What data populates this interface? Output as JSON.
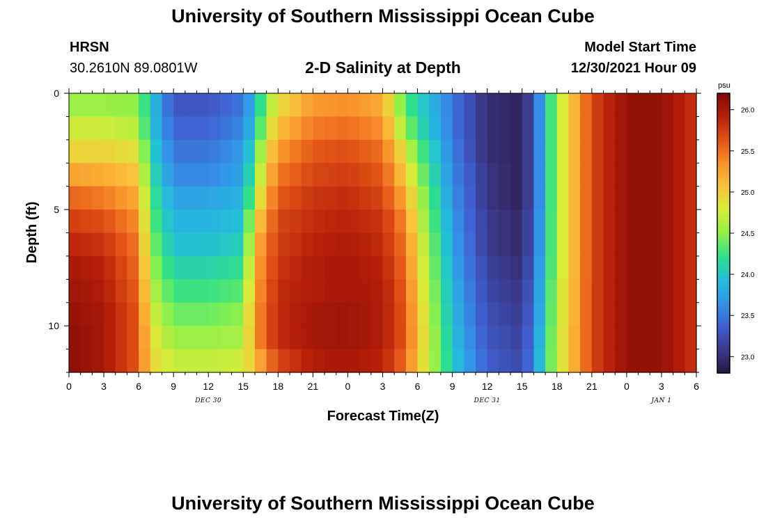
{
  "title": "University of Southern Mississippi Ocean Cube",
  "title_repeat": "University of Southern Mississippi Ocean Cube",
  "station": {
    "name": "HRSN",
    "coords": "30.2610N  89.0801W"
  },
  "plot_title": "2-D Salinity at Depth",
  "model": {
    "label": "Model Start Time",
    "value": "12/30/2021 Hour 09"
  },
  "chart_data": {
    "type": "heatmap",
    "xlabel": "Forecast Time(Z)",
    "ylabel": "Depth (ft)",
    "x_tick_labels": [
      "0",
      "3",
      "6",
      "9",
      "12",
      "15",
      "18",
      "21",
      "0",
      "3",
      "6",
      "9",
      "12",
      "15",
      "18",
      "21",
      "0",
      "3",
      "6"
    ],
    "x_range_hours": [
      0,
      54
    ],
    "date_labels": [
      {
        "text": "DEC 30",
        "hour": 12
      },
      {
        "text": "DEC 31",
        "hour": 36
      },
      {
        "text": "JAN 1",
        "hour": 51
      }
    ],
    "y_tick_labels": [
      "0",
      "5",
      "10"
    ],
    "y_ticks": [
      0,
      5,
      10
    ],
    "ylim": [
      0,
      12
    ],
    "depth_levels": [
      0.5,
      1.5,
      2.5,
      3.5,
      4.5,
      5.5,
      6.5,
      7.5,
      8.5,
      9.5,
      10.5,
      11.5
    ],
    "colorbar": {
      "unit": "psu",
      "min": 22.8,
      "max": 26.2,
      "tick_labels": [
        "23.0",
        "23.5",
        "24.0",
        "24.5",
        "25.0",
        "25.5",
        "26.0"
      ],
      "ticks": [
        23.0,
        23.5,
        24.0,
        24.5,
        25.0,
        25.5,
        26.0
      ],
      "colors": [
        "#2a1540",
        "#3b3a8c",
        "#3f5fd0",
        "#3493e8",
        "#22c0d8",
        "#2fe08a",
        "#8ef04a",
        "#d8ec38",
        "#f9c43a",
        "#f8902c",
        "#e25116",
        "#b8200a",
        "#7f0a04"
      ]
    },
    "profiles_note": "Salinity in psu at each forecast hour, listed per depth level (surface to bottom)",
    "hours": [
      0,
      3,
      6,
      7,
      9,
      12,
      15,
      16,
      17,
      18,
      21,
      24,
      27,
      29,
      30,
      33,
      36,
      39,
      40,
      42,
      45,
      48,
      51,
      54
    ],
    "values": [
      [
        24.55,
        24.55,
        24.5,
        24.0,
        23.3,
        23.3,
        23.5,
        23.9,
        24.5,
        24.9,
        25.3,
        25.35,
        25.2,
        24.3,
        24.1,
        23.5,
        23.0,
        22.9,
        23.3,
        24.6,
        25.7,
        26.1,
        26.1,
        25.8
      ],
      [
        24.75,
        24.75,
        24.65,
        24.0,
        23.4,
        23.4,
        23.6,
        24.0,
        24.7,
        25.1,
        25.45,
        25.5,
        25.35,
        24.5,
        24.2,
        23.5,
        23.0,
        22.9,
        23.3,
        24.6,
        25.7,
        26.1,
        26.1,
        25.8
      ],
      [
        24.95,
        24.95,
        24.85,
        24.1,
        23.5,
        23.5,
        23.7,
        24.2,
        24.9,
        25.3,
        25.6,
        25.65,
        25.5,
        24.8,
        24.4,
        23.55,
        23.0,
        22.9,
        23.3,
        24.6,
        25.7,
        26.1,
        26.1,
        25.8
      ],
      [
        25.25,
        25.2,
        25.05,
        24.2,
        23.6,
        23.6,
        23.75,
        24.4,
        25.05,
        25.45,
        25.7,
        25.75,
        25.6,
        25.0,
        24.55,
        23.6,
        23.05,
        22.9,
        23.3,
        24.6,
        25.7,
        26.1,
        26.1,
        25.8
      ],
      [
        25.55,
        25.45,
        25.2,
        24.3,
        23.75,
        23.75,
        23.85,
        24.6,
        25.2,
        25.6,
        25.8,
        25.85,
        25.7,
        25.2,
        24.7,
        23.65,
        23.05,
        22.9,
        23.3,
        24.6,
        25.7,
        26.1,
        26.1,
        25.8
      ],
      [
        25.75,
        25.65,
        25.35,
        24.4,
        23.85,
        23.85,
        23.95,
        24.9,
        25.35,
        25.7,
        25.85,
        25.9,
        25.8,
        25.35,
        24.8,
        23.7,
        23.1,
        22.95,
        23.35,
        24.6,
        25.7,
        26.1,
        26.1,
        25.8
      ],
      [
        25.9,
        25.8,
        25.45,
        24.5,
        23.95,
        23.95,
        24.05,
        25.1,
        25.45,
        25.75,
        25.9,
        25.95,
        25.85,
        25.45,
        24.9,
        23.75,
        23.1,
        22.95,
        23.35,
        24.6,
        25.7,
        26.1,
        26.1,
        25.8
      ],
      [
        26.0,
        25.9,
        25.5,
        24.6,
        24.1,
        24.1,
        24.2,
        25.2,
        25.5,
        25.8,
        25.95,
        26.0,
        25.9,
        25.5,
        24.95,
        23.8,
        23.15,
        23.0,
        23.4,
        24.6,
        25.7,
        26.1,
        26.1,
        25.8
      ],
      [
        26.05,
        25.95,
        25.55,
        24.7,
        24.25,
        24.25,
        24.35,
        25.25,
        25.55,
        25.85,
        25.95,
        26.0,
        25.95,
        25.55,
        25.0,
        23.85,
        23.2,
        23.05,
        23.45,
        24.65,
        25.7,
        26.1,
        26.1,
        25.8
      ],
      [
        26.1,
        26.0,
        25.6,
        24.8,
        24.4,
        24.4,
        24.5,
        25.3,
        25.6,
        25.85,
        26.0,
        26.05,
        25.95,
        25.6,
        25.05,
        23.9,
        23.25,
        23.1,
        23.5,
        24.65,
        25.7,
        26.1,
        26.1,
        25.8
      ],
      [
        26.15,
        26.0,
        25.6,
        24.9,
        24.55,
        24.55,
        24.6,
        25.3,
        25.6,
        25.85,
        26.0,
        26.05,
        25.95,
        25.6,
        25.1,
        23.95,
        23.3,
        23.15,
        23.55,
        24.7,
        25.7,
        26.1,
        26.1,
        25.8
      ],
      [
        26.15,
        26.0,
        25.6,
        24.95,
        24.7,
        24.7,
        24.75,
        25.1,
        25.4,
        25.7,
        25.95,
        26.0,
        25.9,
        25.5,
        25.05,
        24.0,
        23.35,
        23.2,
        23.6,
        24.7,
        25.7,
        26.1,
        26.1,
        25.8
      ]
    ]
  }
}
